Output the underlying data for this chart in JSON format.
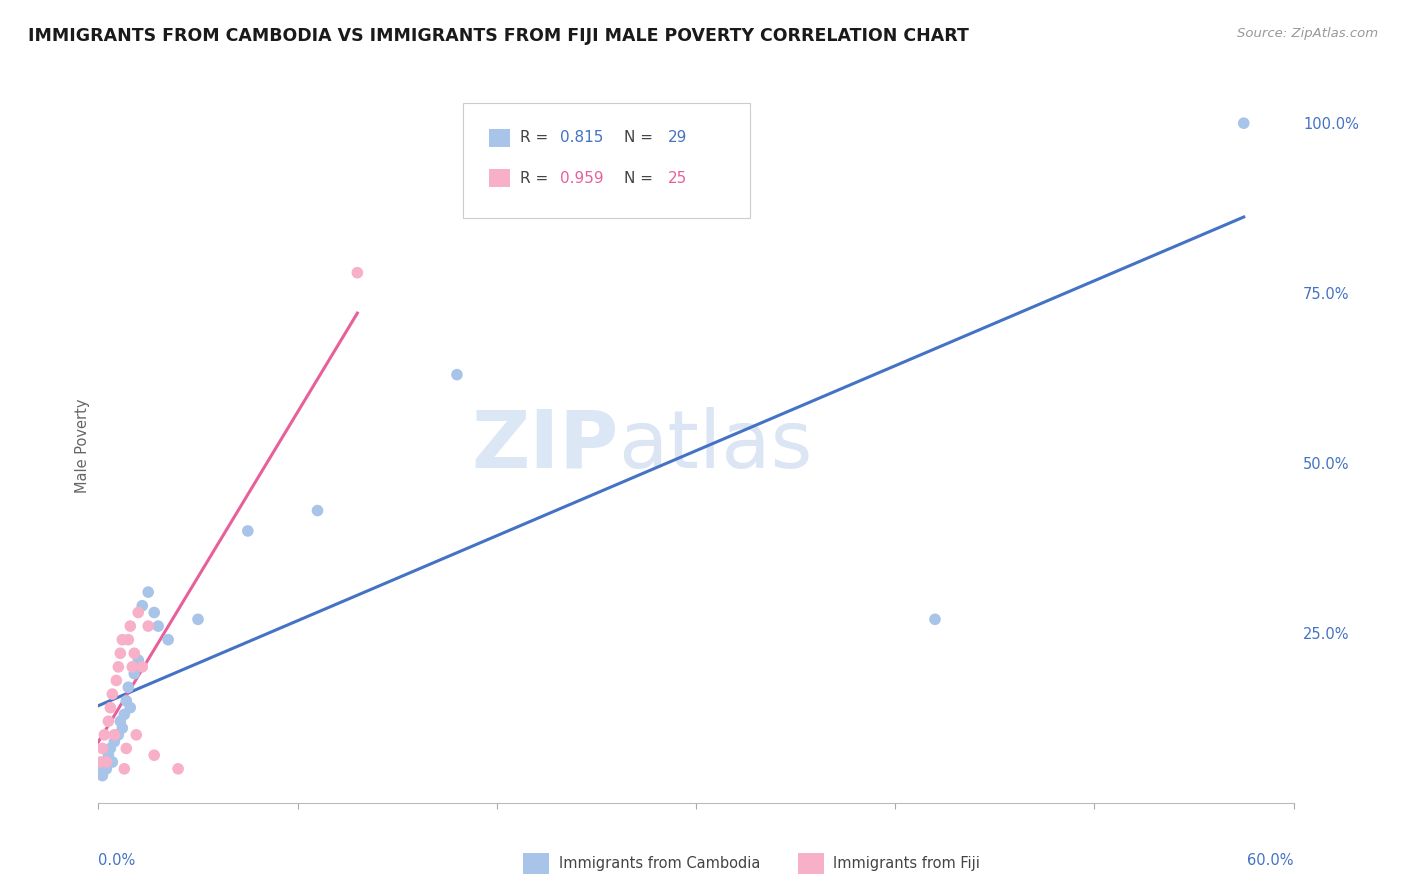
{
  "title": "IMMIGRANTS FROM CAMBODIA VS IMMIGRANTS FROM FIJI MALE POVERTY CORRELATION CHART",
  "source": "Source: ZipAtlas.com",
  "ylabel": "Male Poverty",
  "right_yticks": [
    "100.0%",
    "75.0%",
    "50.0%",
    "25.0%"
  ],
  "right_ytick_vals": [
    1.0,
    0.75,
    0.5,
    0.25
  ],
  "watermark_zip": "ZIP",
  "watermark_atlas": "atlas",
  "cambodia_color": "#a8c4e8",
  "cambodia_line_color": "#4472c4",
  "fiji_color": "#f8afc8",
  "fiji_line_color": "#e8609a",
  "background_color": "#ffffff",
  "grid_color": "#d8d8e8",
  "cambodia_x": [
    0.001,
    0.002,
    0.003,
    0.004,
    0.005,
    0.006,
    0.007,
    0.008,
    0.009,
    0.01,
    0.011,
    0.012,
    0.013,
    0.014,
    0.015,
    0.016,
    0.018,
    0.02,
    0.022,
    0.025,
    0.028,
    0.03,
    0.035,
    0.05,
    0.075,
    0.11,
    0.18,
    0.42,
    0.575
  ],
  "cambodia_y": [
    0.05,
    0.04,
    0.06,
    0.05,
    0.07,
    0.08,
    0.06,
    0.09,
    0.1,
    0.1,
    0.12,
    0.11,
    0.13,
    0.15,
    0.17,
    0.14,
    0.19,
    0.21,
    0.29,
    0.31,
    0.28,
    0.26,
    0.24,
    0.27,
    0.4,
    0.43,
    0.63,
    0.27,
    1.0
  ],
  "fiji_x": [
    0.001,
    0.002,
    0.003,
    0.004,
    0.005,
    0.006,
    0.007,
    0.008,
    0.009,
    0.01,
    0.011,
    0.012,
    0.013,
    0.014,
    0.015,
    0.016,
    0.017,
    0.018,
    0.019,
    0.02,
    0.022,
    0.025,
    0.028,
    0.04,
    0.13
  ],
  "fiji_y": [
    0.06,
    0.08,
    0.1,
    0.06,
    0.12,
    0.14,
    0.16,
    0.1,
    0.18,
    0.2,
    0.22,
    0.24,
    0.05,
    0.08,
    0.24,
    0.26,
    0.2,
    0.22,
    0.1,
    0.28,
    0.2,
    0.26,
    0.07,
    0.05,
    0.78
  ],
  "xlim": [
    0.0,
    0.6
  ],
  "ylim": [
    0.0,
    1.05
  ],
  "xlim_pct_left": "0.0%",
  "xlim_pct_right": "60.0%",
  "legend_R_cambodia": "0.815",
  "legend_N_cambodia": "29",
  "legend_R_fiji": "0.959",
  "legend_N_fiji": "25"
}
